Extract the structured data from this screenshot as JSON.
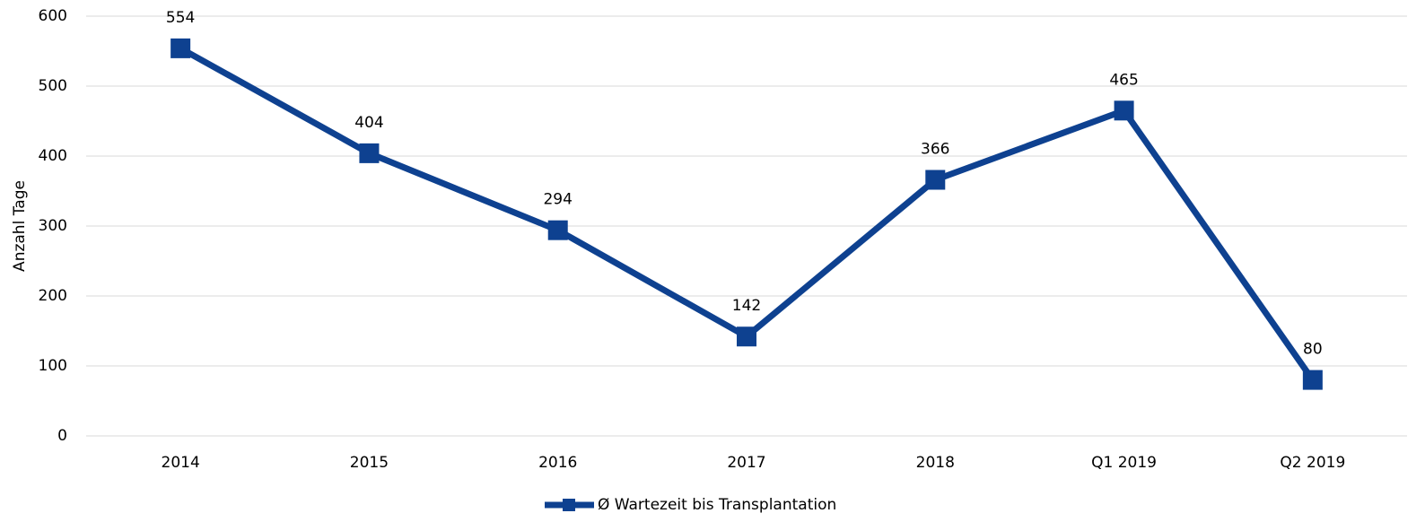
{
  "chart_data": {
    "type": "line",
    "y_label": "Anzahl Tage",
    "categories": [
      "2014",
      "2015",
      "2016",
      "2017",
      "2018",
      "Q1 2019",
      "Q2 2019"
    ],
    "series": [
      {
        "name": "Ø Wartezeit bis Transplantation",
        "color": "#0e4190",
        "values": [
          554,
          404,
          294,
          142,
          366,
          465,
          80
        ]
      }
    ],
    "ylim": [
      0,
      600
    ],
    "yticks": [
      0,
      100,
      200,
      300,
      400,
      500,
      600
    ],
    "grid": true,
    "legend": "bottom"
  }
}
